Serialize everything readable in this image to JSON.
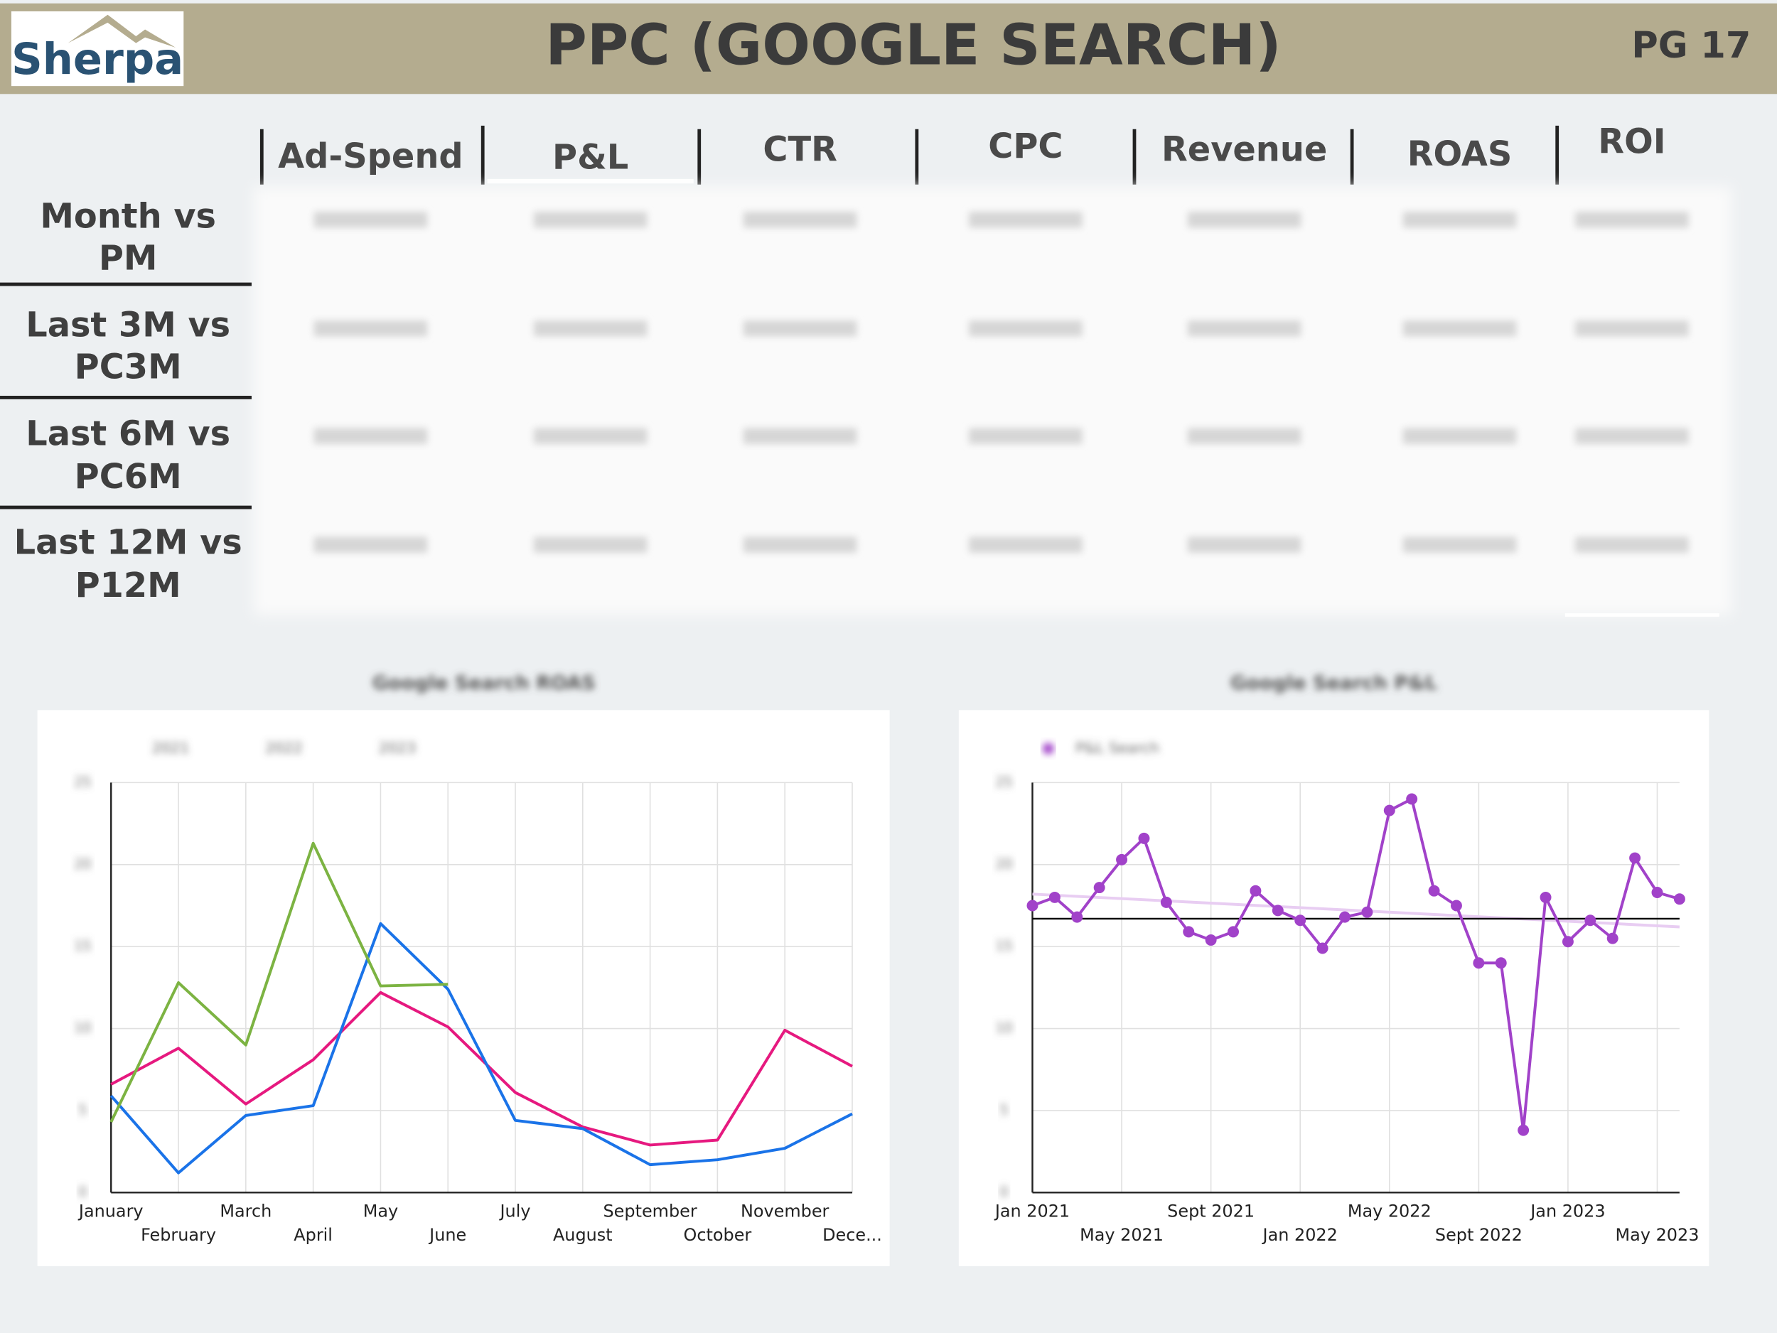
{
  "header": {
    "logo": "Sherpa",
    "title": "PPC (GOOGLE SEARCH)",
    "page": "PG 17"
  },
  "table": {
    "columns": [
      "Ad-Spend",
      "P&L",
      "CTR",
      "CPC",
      "Revenue",
      "ROAS",
      "ROI"
    ],
    "rows": [
      [
        "Month vs",
        "PM"
      ],
      [
        "Last 3M vs",
        "PC3M"
      ],
      [
        "Last 6M vs",
        "PC6M"
      ],
      [
        "Last 12M vs",
        "P12M"
      ]
    ]
  },
  "chart_data": [
    {
      "type": "line",
      "title": "Google Search ROAS",
      "categories": [
        "January",
        "February",
        "March",
        "April",
        "May",
        "June",
        "July",
        "August",
        "September",
        "October",
        "November",
        "Dece..."
      ],
      "series": [
        {
          "name": "2021",
          "color": "#e6197f",
          "values": [
            6.6,
            8.8,
            5.4,
            8.1,
            12.2,
            10.1,
            6.1,
            4.0,
            2.9,
            3.2,
            9.9,
            7.7
          ]
        },
        {
          "name": "2022",
          "color": "#1a73e8",
          "values": [
            5.9,
            1.2,
            4.7,
            5.3,
            16.4,
            12.4,
            4.4,
            3.9,
            1.7,
            2.0,
            2.7,
            4.8
          ]
        },
        {
          "name": "2023",
          "color": "#7cb342",
          "values": [
            4.3,
            12.8,
            9.0,
            21.3,
            12.6,
            12.7,
            null,
            null,
            null,
            null,
            null,
            null
          ]
        }
      ],
      "ylim": [
        0,
        25
      ],
      "yticks": [
        0,
        5,
        10,
        15,
        20,
        25
      ],
      "grid": true,
      "legend": "top-left"
    },
    {
      "type": "line",
      "title": "Google Search P&L",
      "categories": [
        "Jan 2021",
        null,
        null,
        null,
        "May 2021",
        null,
        null,
        null,
        "Sept 2021",
        null,
        null,
        null,
        "Jan 2022",
        null,
        null,
        null,
        "May 2022",
        null,
        null,
        null,
        "Sept 2022",
        null,
        null,
        null,
        "Jan 2023",
        null,
        null,
        null,
        "May 2023",
        null
      ],
      "series": [
        {
          "name": "P&L Search",
          "color": "#a142c9",
          "markers": true,
          "values": [
            17.5,
            18.0,
            16.8,
            18.6,
            20.3,
            21.6,
            17.7,
            15.9,
            15.4,
            15.9,
            18.4,
            17.2,
            16.6,
            14.9,
            16.8,
            17.1,
            23.3,
            24.0,
            18.4,
            17.5,
            14.0,
            14.0,
            3.8,
            18.0,
            15.3,
            16.6,
            15.5,
            20.4,
            18.3,
            17.9
          ]
        }
      ],
      "reference_line": {
        "value": 16.7,
        "color": "#000000"
      },
      "trendline": {
        "start": 18.2,
        "end": 16.2,
        "color": "#e8cdf2"
      },
      "ylim": [
        0,
        25
      ],
      "yticks": [
        0,
        5,
        10,
        15,
        20,
        25
      ],
      "grid": true,
      "legend": "top-left"
    }
  ]
}
